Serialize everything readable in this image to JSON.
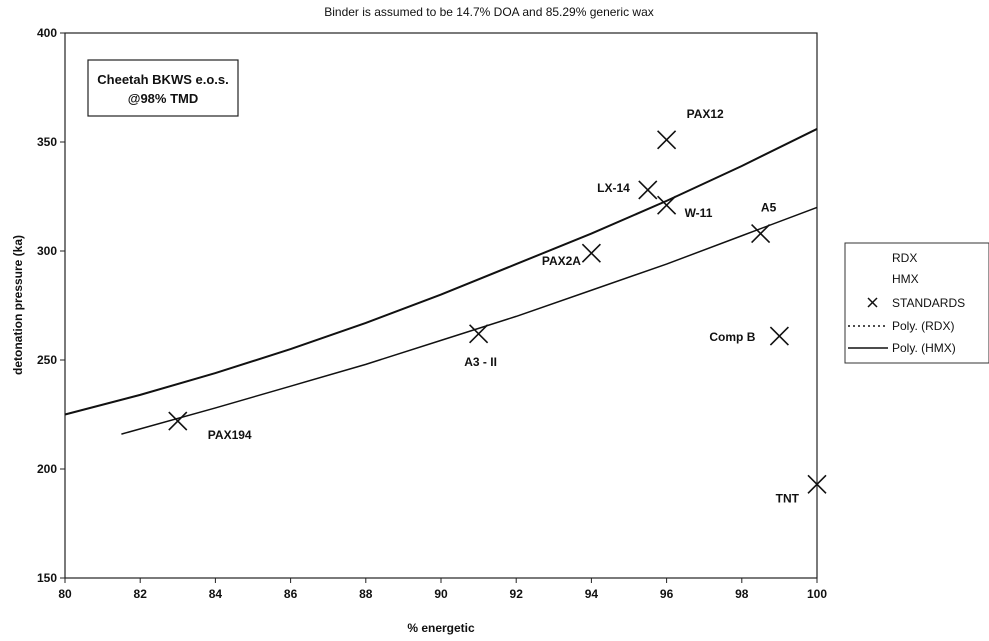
{
  "chart_data": {
    "type": "scatter",
    "title": "Binder is assumed to be 14.7% DOA and 85.29% generic wax",
    "xlabel": "% energetic",
    "ylabel": "detonation pressure (ka)",
    "xlim": [
      80,
      100
    ],
    "ylim": [
      150,
      400
    ],
    "x_ticks": [
      "80",
      "82",
      "84",
      "86",
      "88",
      "90",
      "92",
      "94",
      "96",
      "98",
      "100"
    ],
    "y_ticks": [
      "150",
      "200",
      "250",
      "300",
      "350",
      "400"
    ],
    "grid": false,
    "annotation_box": [
      "Cheetah BKWS e.o.s.",
      "@98% TMD"
    ],
    "legend": {
      "position": "right",
      "entries": [
        "RDX",
        "HMX",
        "STANDARDS",
        "Poly. (RDX)",
        "Poly. (HMX)"
      ]
    },
    "series": [
      {
        "name": "STANDARDS",
        "marker": "x",
        "points": [
          {
            "x": 83,
            "y": 222,
            "label": "PAX194"
          },
          {
            "x": 91,
            "y": 262,
            "label": "A3 - II"
          },
          {
            "x": 94,
            "y": 299,
            "label": "PAX2A"
          },
          {
            "x": 95.5,
            "y": 328,
            "label": "LX-14"
          },
          {
            "x": 96,
            "y": 351,
            "label": "PAX12"
          },
          {
            "x": 96,
            "y": 321,
            "label": "W-11"
          },
          {
            "x": 98.5,
            "y": 308,
            "label": "A5"
          },
          {
            "x": 99,
            "y": 261,
            "label": "Comp B"
          },
          {
            "x": 100,
            "y": 193,
            "label": "TNT"
          }
        ]
      },
      {
        "name": "Poly. (HMX)",
        "style": "solid",
        "x": [
          80,
          82,
          84,
          86,
          88,
          90,
          92,
          94,
          96,
          98,
          100
        ],
        "values": [
          225,
          234,
          244,
          255,
          267,
          280,
          294,
          308,
          323,
          339,
          356
        ]
      },
      {
        "name": "Poly. (RDX)",
        "style": "solid",
        "x": [
          81.5,
          84,
          86,
          88,
          90,
          92,
          94,
          96,
          98,
          100
        ],
        "values": [
          216,
          228,
          238,
          248,
          259,
          270,
          282,
          294,
          307,
          320
        ]
      }
    ]
  }
}
